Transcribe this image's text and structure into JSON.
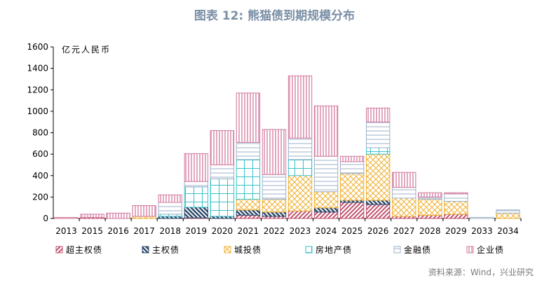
{
  "title": "图表 12: 熊猫债到期规模分布",
  "source": "资料来源：Wind，兴业研究",
  "chart_data": {
    "type": "bar",
    "stacked": true,
    "ylabel": "亿元人民币",
    "ylim": [
      0,
      1600
    ],
    "yticks": [
      0,
      200,
      400,
      600,
      800,
      1000,
      1200,
      1400,
      1600
    ],
    "legend_position": "bottom",
    "categories": [
      "2013",
      "2015",
      "2016",
      "2017",
      "2018",
      "2019",
      "2020",
      "2021",
      "2022",
      "2023",
      "2024",
      "2025",
      "2026",
      "2027",
      "2028",
      "2029",
      "2033",
      "2034"
    ],
    "series": [
      {
        "name": "超主权债",
        "color": "#c0506d",
        "pattern": "diag-right",
        "values": [
          0,
          10,
          0,
          0,
          0,
          5,
          0,
          30,
          20,
          70,
          60,
          150,
          130,
          20,
          30,
          40,
          0,
          0
        ]
      },
      {
        "name": "主权债",
        "color": "#2e4a6b",
        "pattern": "diag-left",
        "values": [
          0,
          0,
          0,
          0,
          20,
          100,
          20,
          50,
          40,
          0,
          40,
          20,
          40,
          0,
          0,
          0,
          0,
          0
        ]
      },
      {
        "name": "城投债",
        "color": "#f0b030",
        "pattern": "cross",
        "values": [
          0,
          0,
          0,
          20,
          0,
          0,
          0,
          100,
          120,
          330,
          150,
          250,
          430,
          170,
          150,
          120,
          0,
          50
        ]
      },
      {
        "name": "房地产债",
        "color": "#38c2c8",
        "pattern": "grid",
        "values": [
          0,
          0,
          0,
          0,
          20,
          190,
          350,
          370,
          0,
          150,
          0,
          0,
          60,
          0,
          0,
          0,
          0,
          0
        ]
      },
      {
        "name": "金融债",
        "color": "#9db2c8",
        "pattern": "hlines",
        "values": [
          0,
          0,
          0,
          0,
          110,
          50,
          130,
          160,
          230,
          200,
          330,
          110,
          240,
          100,
          20,
          70,
          10,
          30
        ]
      },
      {
        "name": "企业债",
        "color": "#d37a9e",
        "pattern": "vlines",
        "values": [
          10,
          30,
          50,
          100,
          70,
          260,
          320,
          460,
          420,
          580,
          470,
          50,
          130,
          140,
          40,
          10,
          0,
          0
        ]
      }
    ]
  }
}
